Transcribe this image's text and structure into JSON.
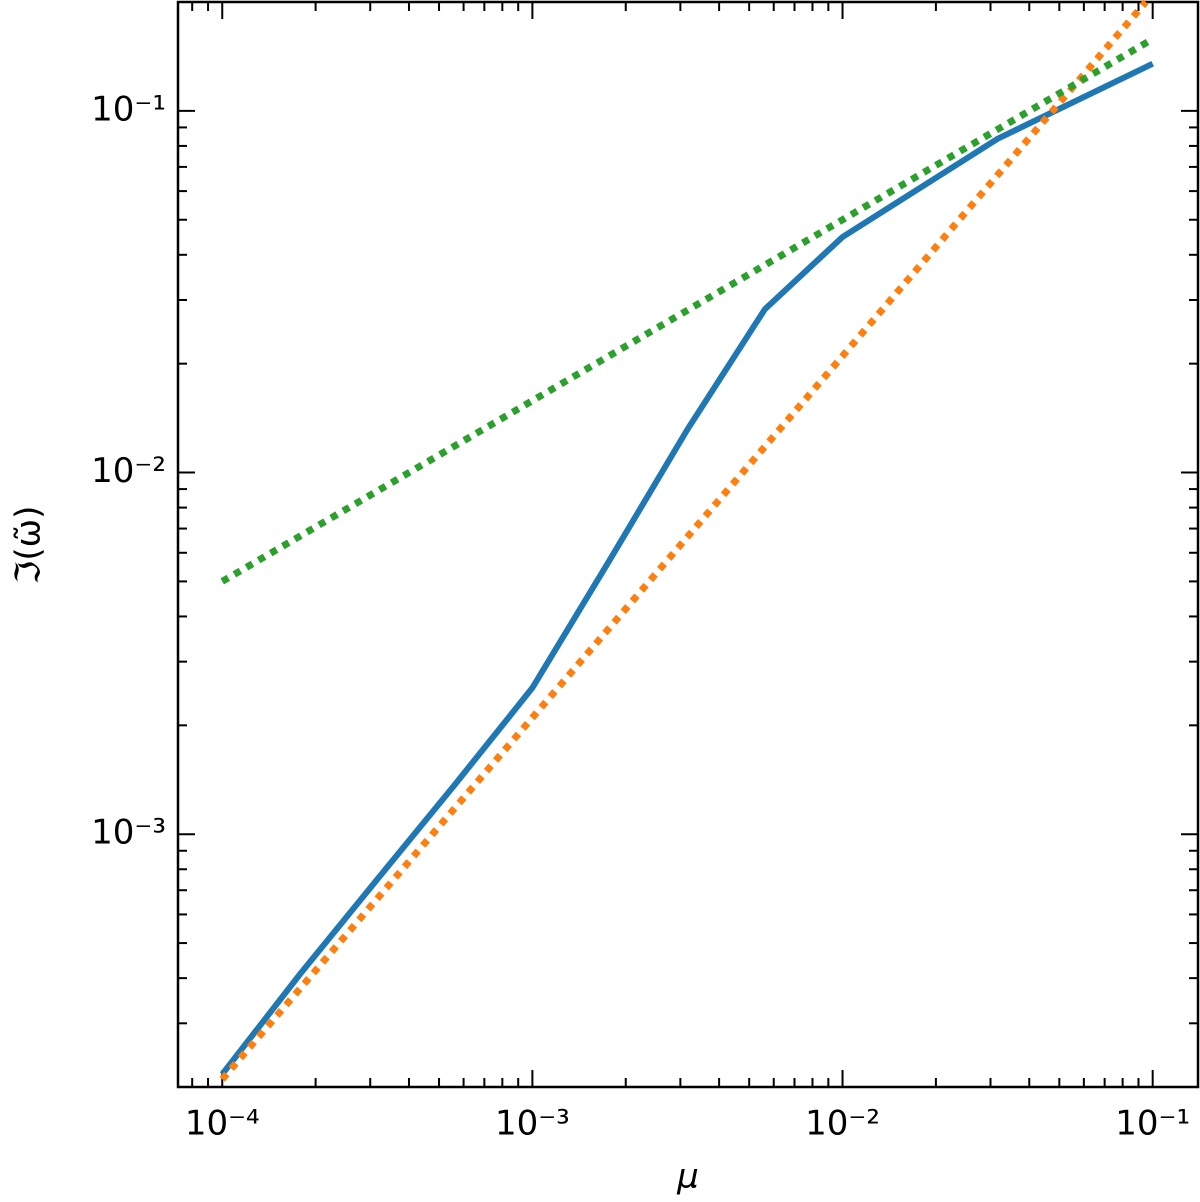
{
  "chart_data": {
    "type": "line",
    "x_label": "μ",
    "y_label": "ℑ(ω̃)",
    "xscale": "log",
    "yscale": "log",
    "xlim": [
      7.2e-05,
      0.14
    ],
    "ylim": [
      0.0002,
      0.2
    ],
    "xticks": [
      {
        "value": 0.0001,
        "label": "10⁻⁴"
      },
      {
        "value": 0.001,
        "label": "10⁻³"
      },
      {
        "value": 0.01,
        "label": "10⁻²"
      },
      {
        "value": 0.1,
        "label": "10⁻¹"
      }
    ],
    "yticks": [
      {
        "value": 0.001,
        "label": "10⁻³"
      },
      {
        "value": 0.01,
        "label": "10⁻²"
      },
      {
        "value": 0.1,
        "label": "10⁻¹"
      }
    ],
    "series": [
      {
        "color": "#1f77b4",
        "style": "solid",
        "x": [
          0.0001,
          0.000178,
          0.000316,
          0.000562,
          0.001,
          0.00178,
          0.00316,
          0.00562,
          0.01,
          0.0316,
          0.1
        ],
        "values": [
          0.000217,
          0.00041,
          0.00075,
          0.00137,
          0.00254,
          0.00575,
          0.01315,
          0.0283,
          0.0448,
          0.0837,
          0.135
        ]
      },
      {
        "color": "#ff7f0e",
        "style": "dotted",
        "x": [
          0.0001,
          0.001,
          0.01,
          0.095
        ],
        "values": [
          0.00021,
          0.0021,
          0.021,
          0.2
        ]
      },
      {
        "color": "#2ca02c",
        "style": "dotted",
        "x": [
          0.0001,
          0.001,
          0.01,
          0.1
        ],
        "values": [
          0.005,
          0.0158,
          0.05,
          0.158
        ]
      }
    ]
  }
}
